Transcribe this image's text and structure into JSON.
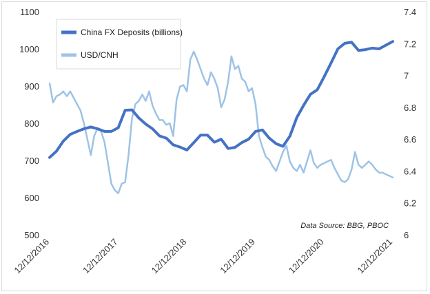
{
  "chart_data": {
    "type": "line",
    "title": "",
    "note": "Data Source: BBG, PBOC",
    "y_left": {
      "min": 500,
      "max": 1100,
      "ticks": [
        "500",
        "600",
        "700",
        "800",
        "900",
        "1000",
        "1100"
      ]
    },
    "y_right": {
      "min": 6,
      "max": 7.4,
      "ticks": [
        "6",
        "6.2",
        "6.4",
        "6.6",
        "6.8",
        "7",
        "7.2",
        "7.4"
      ]
    },
    "x_ticks": [
      "12/12/2016",
      "12/12/2017",
      "12/12/2018",
      "12/12/2019",
      "12/12/2020",
      "12/12/2021"
    ],
    "x_range": [
      2016.95,
      2021.95
    ],
    "legend": {
      "position": "top-left"
    },
    "series": [
      {
        "name": "China FX Deposits (billions)",
        "axis": "left",
        "color": "#4472c4",
        "x": [
          2016.95,
          2017.05,
          2017.15,
          2017.25,
          2017.35,
          2017.45,
          2017.55,
          2017.65,
          2017.75,
          2017.85,
          2017.95,
          2018.05,
          2018.15,
          2018.25,
          2018.35,
          2018.45,
          2018.55,
          2018.65,
          2018.75,
          2018.85,
          2018.95,
          2019.05,
          2019.15,
          2019.25,
          2019.35,
          2019.45,
          2019.55,
          2019.65,
          2019.75,
          2019.85,
          2019.95,
          2020.05,
          2020.15,
          2020.25,
          2020.35,
          2020.45,
          2020.55,
          2020.65,
          2020.75,
          2020.85,
          2020.95,
          2021.05,
          2021.15,
          2021.25,
          2021.35,
          2021.45,
          2021.55,
          2021.65,
          2021.75,
          2021.85,
          2021.95
        ],
        "y": [
          708,
          725,
          752,
          770,
          778,
          785,
          790,
          785,
          778,
          778,
          788,
          835,
          836,
          814,
          798,
          785,
          766,
          760,
          742,
          736,
          728,
          748,
          768,
          768,
          749,
          757,
          732,
          735,
          748,
          757,
          778,
          782,
          760,
          745,
          738,
          765,
          815,
          848,
          878,
          890,
          925,
          962,
          1000,
          1015,
          1018,
          996,
          998,
          1002,
          1000,
          1010,
          1020
        ]
      },
      {
        "name": "USD/CNH",
        "axis": "right",
        "color": "#9dc3e6",
        "x": [
          2016.95,
          2017.0,
          2017.05,
          2017.1,
          2017.15,
          2017.2,
          2017.25,
          2017.3,
          2017.35,
          2017.4,
          2017.45,
          2017.5,
          2017.55,
          2017.6,
          2017.65,
          2017.7,
          2017.75,
          2017.8,
          2017.85,
          2017.9,
          2017.95,
          2018.0,
          2018.05,
          2018.1,
          2018.15,
          2018.2,
          2018.25,
          2018.3,
          2018.35,
          2018.4,
          2018.45,
          2018.5,
          2018.55,
          2018.6,
          2018.65,
          2018.7,
          2018.75,
          2018.8,
          2018.85,
          2018.9,
          2018.95,
          2019.0,
          2019.05,
          2019.1,
          2019.15,
          2019.2,
          2019.25,
          2019.3,
          2019.35,
          2019.4,
          2019.45,
          2019.5,
          2019.55,
          2019.6,
          2019.65,
          2019.7,
          2019.75,
          2019.8,
          2019.85,
          2019.9,
          2019.95,
          2020.0,
          2020.05,
          2020.1,
          2020.15,
          2020.2,
          2020.25,
          2020.3,
          2020.35,
          2020.4,
          2020.45,
          2020.5,
          2020.55,
          2020.6,
          2020.65,
          2020.7,
          2020.75,
          2020.8,
          2020.85,
          2020.9,
          2020.95,
          2021.0,
          2021.05,
          2021.1,
          2021.15,
          2021.2,
          2021.25,
          2021.3,
          2021.35,
          2021.4,
          2021.45,
          2021.5,
          2021.55,
          2021.6,
          2021.65,
          2021.7,
          2021.75,
          2021.8,
          2021.85,
          2021.9,
          2021.95
        ],
        "y": [
          6.95,
          6.83,
          6.87,
          6.88,
          6.9,
          6.87,
          6.9,
          6.86,
          6.82,
          6.78,
          6.7,
          6.6,
          6.5,
          6.62,
          6.67,
          6.65,
          6.58,
          6.45,
          6.32,
          6.28,
          6.26,
          6.32,
          6.33,
          6.5,
          6.73,
          6.82,
          6.84,
          6.88,
          6.84,
          6.9,
          6.81,
          6.76,
          6.72,
          6.72,
          6.69,
          6.7,
          6.62,
          6.85,
          6.93,
          6.94,
          6.9,
          7.1,
          7.15,
          7.1,
          7.04,
          6.98,
          6.94,
          7.02,
          6.98,
          6.92,
          6.8,
          6.85,
          6.96,
          7.12,
          7.04,
          7.06,
          6.98,
          6.96,
          6.9,
          6.92,
          6.82,
          6.62,
          6.55,
          6.49,
          6.47,
          6.43,
          6.4,
          6.46,
          6.52,
          6.56,
          6.46,
          6.42,
          6.4,
          6.44,
          6.39,
          6.46,
          6.53,
          6.45,
          6.42,
          6.44,
          6.45,
          6.46,
          6.47,
          6.42,
          6.38,
          6.34,
          6.33,
          6.35,
          6.41,
          6.52,
          6.44,
          6.42,
          6.44,
          6.46,
          6.44,
          6.41,
          6.39,
          6.39,
          6.38,
          6.37,
          6.36
        ]
      }
    ]
  }
}
